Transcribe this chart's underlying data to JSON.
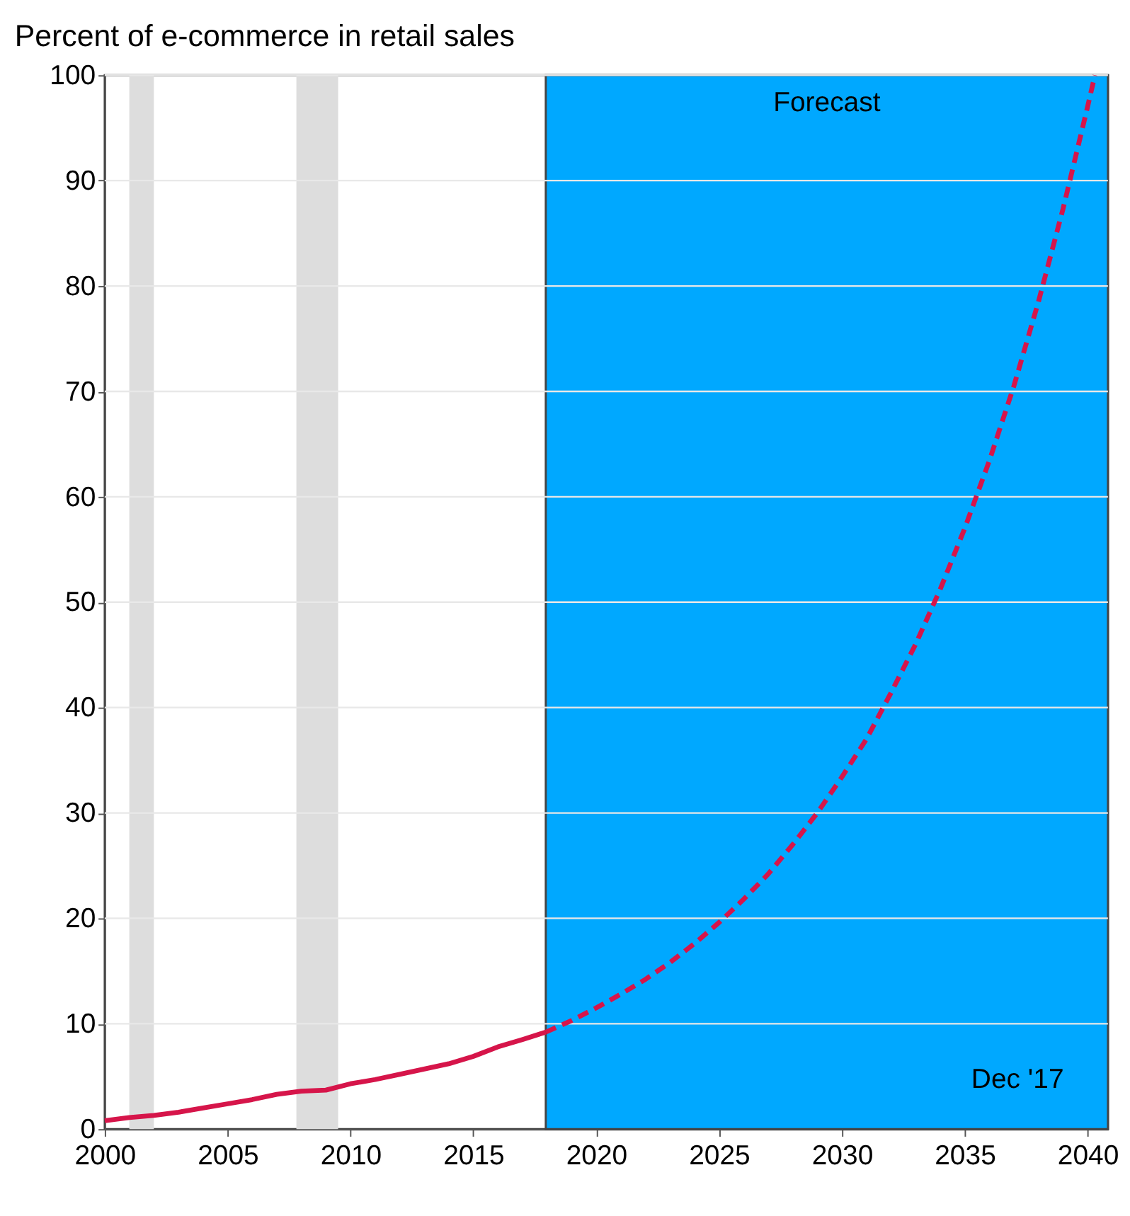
{
  "chart_data": {
    "type": "line",
    "title": "Percent of e-commerce in retail sales",
    "annotations": [
      "Dec '17"
    ],
    "series": [
      {
        "color": "#d6154a",
        "line_style": "solid",
        "x": [
          2000,
          2001,
          2002,
          2003,
          2004,
          2005,
          2006,
          2007,
          2008,
          2009,
          2010,
          2011,
          2012,
          2013,
          2014,
          2015,
          2016,
          2017,
          2017.95
        ],
        "values": [
          0.8,
          1.1,
          1.3,
          1.6,
          2.0,
          2.4,
          2.8,
          3.3,
          3.6,
          3.7,
          4.3,
          4.7,
          5.2,
          5.7,
          6.2,
          6.9,
          7.8,
          8.5,
          9.2
        ]
      },
      {
        "color": "#d6154a",
        "line_style": "dashed",
        "x": [
          2017.95,
          2019,
          2020,
          2021,
          2022,
          2023,
          2024,
          2025,
          2026,
          2027,
          2028,
          2029,
          2030,
          2031,
          2032,
          2033,
          2034,
          2035,
          2036,
          2037,
          2038,
          2039,
          2040,
          2040.3
        ],
        "values": [
          9.2,
          10.3,
          11.5,
          12.8,
          14.2,
          15.8,
          17.6,
          19.6,
          21.8,
          24.2,
          27,
          30,
          33.4,
          37,
          41.4,
          46,
          51.2,
          57,
          63.4,
          70.5,
          78.5,
          87.3,
          97,
          100
        ]
      }
    ],
    "bands": [
      {
        "axis": "x",
        "from": 2001.0,
        "to": 2002.0,
        "color": "#dddddd"
      },
      {
        "axis": "x",
        "from": 2007.8,
        "to": 2009.5,
        "color": "#dddddd"
      },
      {
        "axis": "x",
        "from": 2017.95,
        "to": 2040.83,
        "color": "#00a8ff",
        "label": "Forecast"
      }
    ],
    "xlim": [
      2000,
      2040.83
    ],
    "xticks": [
      2000,
      2005,
      2010,
      2015,
      2020,
      2025,
      2030,
      2035,
      2040
    ],
    "ylim": [
      0,
      100
    ],
    "yticks": [
      0,
      10,
      20,
      30,
      40,
      50,
      60,
      70,
      80,
      90,
      100
    ],
    "grid": "y"
  }
}
